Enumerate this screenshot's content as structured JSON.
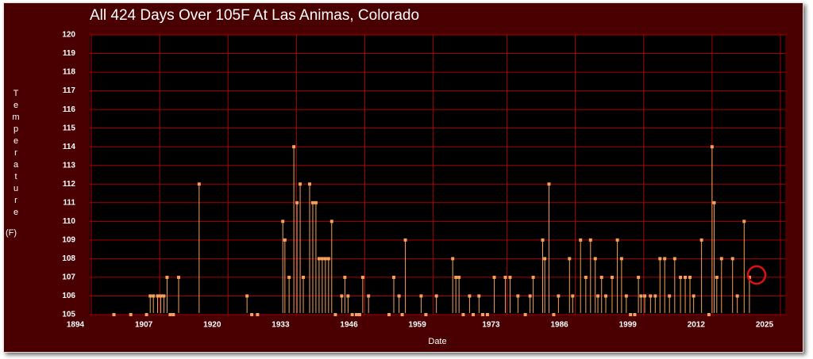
{
  "chart_data": {
    "type": "scatter",
    "title": "All 424 Days Over 105F At Las Animas, Colorado",
    "x_label": "Date",
    "y_label": "Temperature",
    "y_unit": "(F)",
    "xlim": [
      1894,
      2025
    ],
    "xticks": [
      1894,
      1907,
      1920,
      1933,
      1946,
      1959,
      1973,
      1986,
      1999,
      2012,
      2025
    ],
    "ylim": [
      105,
      120
    ],
    "yticks": [
      105,
      106,
      107,
      108,
      109,
      110,
      111,
      112,
      113,
      114,
      115,
      116,
      117,
      118,
      119,
      120
    ],
    "grid": true,
    "series": [
      {
        "color": "#f5a15a",
        "x": [
          1898.3,
          1901.5,
          1904.5,
          1905.2,
          1905.8,
          1906.6,
          1907.2,
          1907.8,
          1908.4,
          1909.0,
          1909.6,
          1910.6,
          1914.5,
          1923.6,
          1924.5,
          1925.6,
          1930.4,
          1930.8,
          1931.6,
          1932.5,
          1933.1,
          1933.7,
          1934.3,
          1935.5,
          1936.1,
          1936.7,
          1937.3,
          1937.9,
          1938.5,
          1939.1,
          1939.7,
          1940.4,
          1941.6,
          1942.2,
          1942.8,
          1943.6,
          1944.4,
          1945.0,
          1945.6,
          1946.7,
          1950.6,
          1951.5,
          1952.5,
          1953.1,
          1953.7,
          1956.7,
          1957.6,
          1959.6,
          1962.7,
          1963.3,
          1963.9,
          1964.7,
          1965.9,
          1966.6,
          1967.7,
          1968.4,
          1969.3,
          1970.6,
          1972.7,
          1973.6,
          1975.1,
          1976.5,
          1977.4,
          1978.0,
          1979.8,
          1980.2,
          1981.0,
          1981.9,
          1982.8,
          1984.9,
          1985.5,
          1987.0,
          1988.0,
          1988.9,
          1989.8,
          1990.3,
          1991.0,
          1991.8,
          1993.0,
          1994.0,
          1994.8,
          1995.7,
          1996.5,
          1997.3,
          1998.0,
          1998.5,
          1999.2,
          2000.3,
          2001.2,
          2002.1,
          2003.0,
          2003.9,
          2004.9,
          2006.0,
          2006.9,
          2007.8,
          2008.5,
          2010.0,
          2011.4,
          2012.0,
          2012.4,
          2012.9,
          2013.8,
          2015.9,
          2016.8,
          2018.1,
          2019.1
        ],
        "values": [
          105,
          105,
          105,
          106,
          106,
          106,
          106,
          106,
          107,
          105,
          105,
          107,
          112,
          106,
          105,
          105,
          110,
          109,
          107,
          114,
          111,
          112,
          107,
          112,
          111,
          111,
          108,
          108,
          108,
          108,
          110,
          105,
          106,
          107,
          106,
          105,
          105,
          105,
          107,
          106,
          105,
          107,
          106,
          105,
          109,
          106,
          105,
          106,
          108,
          107,
          107,
          105,
          106,
          105,
          106,
          105,
          105,
          107,
          107,
          107,
          106,
          105,
          106,
          107,
          109,
          108,
          112,
          105,
          106,
          108,
          106,
          109,
          107,
          109,
          108,
          106,
          107,
          106,
          107,
          109,
          108,
          106,
          105,
          105,
          107,
          106,
          106,
          106,
          106,
          108,
          108,
          106,
          108,
          107,
          107,
          107,
          106,
          109,
          105,
          114,
          111,
          107,
          108,
          108,
          106,
          110,
          107
        ]
      }
    ]
  }
}
